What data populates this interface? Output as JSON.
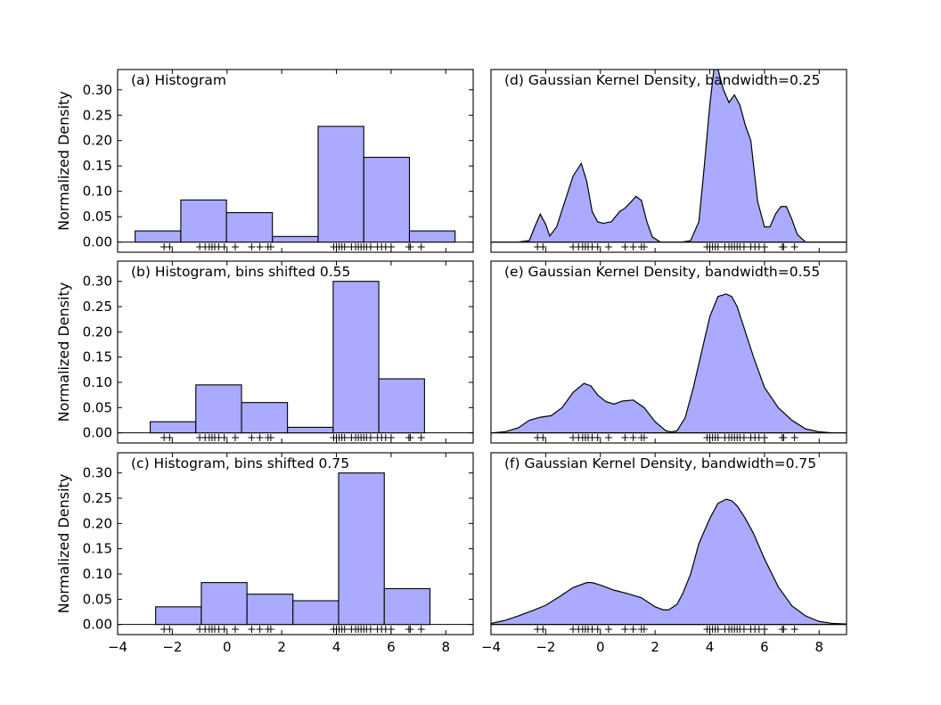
{
  "chart_data": [
    {
      "type": "bar",
      "title": "(a) Histogram",
      "ylabel": "Normalized Density",
      "xlim": [
        -4,
        9
      ],
      "ylim": [
        -0.02,
        0.34
      ],
      "yticks": [
        0.0,
        0.05,
        0.1,
        0.15,
        0.2,
        0.25,
        0.3
      ],
      "ytick_labels": [
        "0.00",
        "0.05",
        "0.10",
        "0.15",
        "0.20",
        "0.25",
        "0.30"
      ],
      "bin_edges": [
        -3.36,
        -1.69,
        -0.02,
        1.66,
        3.33,
        5.0,
        6.67,
        8.34
      ],
      "values": [
        0.022,
        0.083,
        0.058,
        0.011,
        0.228,
        0.167,
        0.022
      ],
      "rug": true
    },
    {
      "type": "bar",
      "title": "(b) Histogram, bins shifted 0.55",
      "ylabel": "Normalized Density",
      "xlim": [
        -4,
        9
      ],
      "ylim": [
        -0.02,
        0.34
      ],
      "yticks": [
        0.0,
        0.05,
        0.1,
        0.15,
        0.2,
        0.25,
        0.3
      ],
      "ytick_labels": [
        "0.00",
        "0.05",
        "0.10",
        "0.15",
        "0.20",
        "0.25",
        "0.30"
      ],
      "bin_edges": [
        -2.81,
        -1.14,
        0.53,
        2.21,
        3.88,
        5.55,
        7.22
      ],
      "values": [
        0.022,
        0.095,
        0.06,
        0.011,
        0.3,
        0.107
      ],
      "rug": true
    },
    {
      "type": "bar",
      "title": "(c) Histogram, bins shifted 0.75",
      "ylabel": "Normalized Density",
      "xlim": [
        -4,
        9
      ],
      "ylim": [
        -0.02,
        0.34
      ],
      "yticks": [
        0.0,
        0.05,
        0.1,
        0.15,
        0.2,
        0.25,
        0.3
      ],
      "ytick_labels": [
        "0.00",
        "0.05",
        "0.10",
        "0.15",
        "0.20",
        "0.25",
        "0.30"
      ],
      "xticks": [
        -4,
        -2,
        0,
        2,
        4,
        6,
        8
      ],
      "xtick_labels": [
        "−4",
        "−2",
        "0",
        "2",
        "4",
        "6",
        "8"
      ],
      "bin_edges": [
        -2.61,
        -0.94,
        0.73,
        2.41,
        4.08,
        5.75,
        7.42
      ],
      "values": [
        0.035,
        0.083,
        0.06,
        0.047,
        0.3,
        0.071
      ],
      "rug": true
    },
    {
      "type": "area",
      "title": "(d) Gaussian Kernel Density, bandwidth=0.25",
      "xlim": [
        -4,
        9
      ],
      "ylim": [
        -0.02,
        0.34
      ],
      "x": [
        -4.0,
        -3.0,
        -2.6,
        -2.4,
        -2.2,
        -2.0,
        -1.85,
        -1.6,
        -1.3,
        -1.0,
        -0.7,
        -0.5,
        -0.3,
        -0.1,
        0.1,
        0.4,
        0.7,
        0.9,
        1.1,
        1.3,
        1.5,
        1.7,
        1.9,
        2.2,
        2.6,
        3.0,
        3.3,
        3.6,
        3.8,
        4.0,
        4.15,
        4.3,
        4.5,
        4.7,
        4.9,
        5.1,
        5.3,
        5.5,
        5.75,
        6.0,
        6.2,
        6.4,
        6.6,
        6.8,
        7.0,
        7.2,
        7.5,
        7.8,
        8.2,
        9.0
      ],
      "y": [
        0.0,
        0.0,
        0.003,
        0.03,
        0.055,
        0.035,
        0.012,
        0.03,
        0.08,
        0.13,
        0.155,
        0.12,
        0.06,
        0.04,
        0.037,
        0.04,
        0.06,
        0.067,
        0.078,
        0.09,
        0.082,
        0.04,
        0.01,
        0.0,
        0.0,
        0.0,
        0.003,
        0.04,
        0.15,
        0.27,
        0.34,
        0.34,
        0.3,
        0.275,
        0.29,
        0.27,
        0.23,
        0.2,
        0.08,
        0.03,
        0.03,
        0.055,
        0.07,
        0.07,
        0.045,
        0.015,
        0.0,
        0.0,
        0.0,
        0.0
      ],
      "rug": true
    },
    {
      "type": "area",
      "title": "(e) Gaussian Kernel Density, bandwidth=0.55",
      "xlim": [
        -4,
        9
      ],
      "ylim": [
        -0.02,
        0.34
      ],
      "x": [
        -4.0,
        -3.5,
        -3.0,
        -2.6,
        -2.2,
        -1.8,
        -1.4,
        -1.0,
        -0.6,
        -0.35,
        -0.1,
        0.2,
        0.5,
        0.8,
        1.2,
        1.6,
        2.0,
        2.4,
        2.6,
        2.8,
        3.1,
        3.4,
        3.7,
        4.0,
        4.3,
        4.6,
        4.8,
        5.0,
        5.3,
        5.6,
        6.0,
        6.5,
        7.0,
        7.5,
        8.0,
        8.5,
        9.0
      ],
      "y": [
        0.0,
        0.002,
        0.01,
        0.025,
        0.031,
        0.034,
        0.05,
        0.08,
        0.098,
        0.093,
        0.075,
        0.062,
        0.057,
        0.063,
        0.065,
        0.05,
        0.022,
        0.004,
        0.002,
        0.004,
        0.03,
        0.09,
        0.16,
        0.23,
        0.27,
        0.275,
        0.27,
        0.25,
        0.2,
        0.15,
        0.09,
        0.05,
        0.025,
        0.008,
        0.002,
        0.0,
        0.0
      ],
      "rug": true
    },
    {
      "type": "area",
      "title": "(f) Gaussian Kernel Density, bandwidth=0.75",
      "xlim": [
        -4,
        9
      ],
      "ylim": [
        -0.02,
        0.34
      ],
      "xticks": [
        -4,
        -2,
        0,
        2,
        4,
        6,
        8
      ],
      "xtick_labels": [
        "−4",
        "−2",
        "0",
        "2",
        "4",
        "6",
        "8"
      ],
      "x": [
        -4.0,
        -3.5,
        -3.0,
        -2.5,
        -2.0,
        -1.5,
        -1.0,
        -0.5,
        -0.3,
        0.0,
        0.5,
        1.0,
        1.5,
        2.0,
        2.3,
        2.5,
        2.8,
        3.0,
        3.3,
        3.6,
        4.0,
        4.3,
        4.6,
        4.8,
        5.0,
        5.3,
        5.6,
        6.0,
        6.5,
        7.0,
        7.5,
        8.0,
        8.5,
        9.0
      ],
      "y": [
        0.002,
        0.008,
        0.017,
        0.027,
        0.038,
        0.055,
        0.073,
        0.083,
        0.083,
        0.078,
        0.068,
        0.061,
        0.053,
        0.035,
        0.029,
        0.029,
        0.04,
        0.06,
        0.1,
        0.16,
        0.21,
        0.24,
        0.248,
        0.245,
        0.235,
        0.21,
        0.18,
        0.13,
        0.075,
        0.037,
        0.017,
        0.006,
        0.002,
        0.001
      ],
      "rug": true
    }
  ],
  "rug_points": [
    -2.3,
    -2.1,
    -1.0,
    -0.8,
    -0.65,
    -0.55,
    -0.45,
    -0.3,
    -0.1,
    0.3,
    0.9,
    1.2,
    1.5,
    1.6,
    3.9,
    4.0,
    4.1,
    4.2,
    4.3,
    4.55,
    4.7,
    4.8,
    4.9,
    5.0,
    5.1,
    5.25,
    5.5,
    5.65,
    5.8,
    6.0,
    6.65,
    6.7,
    7.1
  ]
}
